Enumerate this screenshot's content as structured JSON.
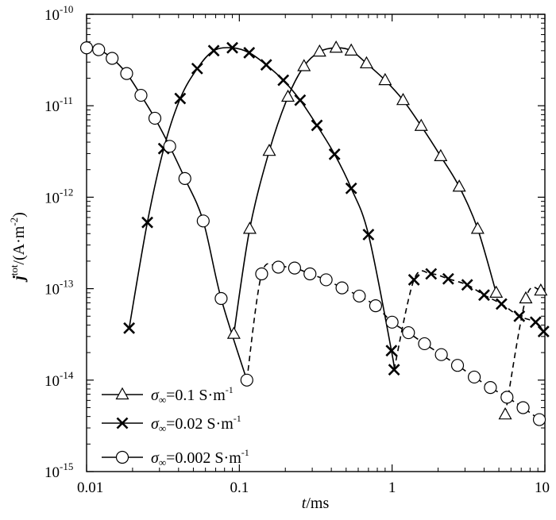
{
  "chart_data": {
    "type": "line",
    "xlabel": {
      "italic": "t",
      "rest": "/ms"
    },
    "ylabel": {
      "main": "j",
      "sup": "tot",
      "unit": "/(A·m",
      "unit_sup": "-2",
      "close": ")"
    },
    "x_scale": "log",
    "y_scale": "log",
    "xlim": [
      0.01,
      10
    ],
    "ylim": [
      1e-15,
      1e-10
    ],
    "x_ticks": [
      {
        "value": 0.01,
        "label": "0.01"
      },
      {
        "value": 0.1,
        "label": "0.1"
      },
      {
        "value": 1,
        "label": "1"
      },
      {
        "value": 10,
        "label": "10"
      }
    ],
    "y_ticks": [
      {
        "value": 1e-10,
        "base": "10",
        "exp": "-10"
      },
      {
        "value": 1e-11,
        "base": "10",
        "exp": "-11"
      },
      {
        "value": 1e-12,
        "base": "10",
        "exp": "-12"
      },
      {
        "value": 1e-13,
        "base": "10",
        "exp": "-13"
      },
      {
        "value": 1e-14,
        "base": "10",
        "exp": "-14"
      },
      {
        "value": 1e-15,
        "base": "10",
        "exp": "-15"
      }
    ],
    "legend_position": "bottom-left",
    "series": [
      {
        "name": "σ∞=0.1 S·m-1",
        "label_parts": {
          "sym": "σ",
          "sub": "∞",
          "text": "=0.1 S·m",
          "sup": "-1"
        },
        "marker": "triangle",
        "points": [
          [
            0.092,
            3.2e-14
          ],
          [
            0.117,
            4.5e-13
          ],
          [
            0.157,
            3.2e-12
          ],
          [
            0.208,
            1.25e-11
          ],
          [
            0.265,
            2.7e-11
          ],
          [
            0.335,
            3.9e-11
          ],
          [
            0.43,
            4.3e-11
          ],
          [
            0.54,
            4e-11
          ],
          [
            0.68,
            2.9e-11
          ],
          [
            0.9,
            1.9e-11
          ],
          [
            1.18,
            1.15e-11
          ],
          [
            1.55,
            6e-12
          ],
          [
            2.08,
            2.8e-12
          ],
          [
            2.75,
            1.3e-12
          ],
          [
            3.63,
            4.5e-13
          ],
          [
            4.8,
            9e-14
          ],
          [
            5.5,
            4.2e-15
          ],
          [
            7.5,
            7.8e-14
          ],
          [
            9.4,
            9.5e-14
          ]
        ],
        "solid_segments": [
          [
            0.092,
            5.3
          ]
        ],
        "dashed_segments": [
          [
            5.5,
            10
          ]
        ]
      },
      {
        "name": "σ∞=0.02 S·m-1",
        "label_parts": {
          "sym": "σ",
          "sub": "∞",
          "text": "=0.02 S·m",
          "sup": "-1"
        },
        "marker": "x",
        "points": [
          [
            0.019,
            3.7e-14
          ],
          [
            0.025,
            5.3e-13
          ],
          [
            0.032,
            3.4e-12
          ],
          [
            0.041,
            1.2e-11
          ],
          [
            0.053,
            2.55e-11
          ],
          [
            0.068,
            4e-11
          ],
          [
            0.09,
            4.3e-11
          ],
          [
            0.116,
            3.8e-11
          ],
          [
            0.15,
            2.8e-11
          ],
          [
            0.194,
            1.9e-11
          ],
          [
            0.25,
            1.15e-11
          ],
          [
            0.322,
            6.1e-12
          ],
          [
            0.42,
            2.95e-12
          ],
          [
            0.54,
            1.25e-12
          ],
          [
            0.7,
            3.9e-13
          ],
          [
            0.99,
            2.1e-14
          ],
          [
            1.03,
            1.3e-14
          ],
          [
            1.39,
            1.25e-13
          ],
          [
            1.8,
            1.45e-13
          ],
          [
            2.33,
            1.28e-13
          ],
          [
            3.1,
            1.1e-13
          ],
          [
            4.0,
            8.5e-14
          ],
          [
            5.2,
            6.8e-14
          ],
          [
            6.8,
            5e-14
          ],
          [
            8.7,
            4.3e-14
          ],
          [
            9.8,
            3.4e-14
          ]
        ],
        "solid_segments": [
          [
            0.019,
            1.03
          ]
        ],
        "dashed_segments": [
          [
            1.03,
            10
          ]
        ]
      },
      {
        "name": "σ∞=0.002 S·m-1",
        "label_parts": {
          "sym": "σ",
          "sub": "∞",
          "text": "=0.002 S·m",
          "sup": "-1"
        },
        "marker": "circle",
        "points": [
          [
            0.01,
            4.3e-11
          ],
          [
            0.012,
            4.1e-11
          ],
          [
            0.0147,
            3.3e-11
          ],
          [
            0.0183,
            2.25e-11
          ],
          [
            0.0227,
            1.3e-11
          ],
          [
            0.028,
            7.3e-12
          ],
          [
            0.035,
            3.6e-12
          ],
          [
            0.044,
            1.6e-12
          ],
          [
            0.058,
            5.5e-13
          ],
          [
            0.076,
            7.8e-14
          ],
          [
            0.112,
            1e-14
          ],
          [
            0.14,
            1.45e-13
          ],
          [
            0.18,
            1.72e-13
          ],
          [
            0.23,
            1.68e-13
          ],
          [
            0.29,
            1.45e-13
          ],
          [
            0.37,
            1.25e-13
          ],
          [
            0.47,
            1.02e-13
          ],
          [
            0.61,
            8.3e-14
          ],
          [
            0.78,
            6.5e-14
          ],
          [
            1.0,
            4.3e-14
          ],
          [
            1.28,
            3.3e-14
          ],
          [
            1.63,
            2.5e-14
          ],
          [
            2.1,
            1.9e-14
          ],
          [
            2.68,
            1.45e-14
          ],
          [
            3.45,
            1.08e-14
          ],
          [
            4.4,
            8.3e-15
          ],
          [
            5.65,
            6.5e-15
          ],
          [
            7.2,
            5e-15
          ],
          [
            9.2,
            3.7e-15
          ]
        ],
        "solid_segments": [
          [
            0.01,
            0.112
          ]
        ],
        "dashed_segments": [
          [
            0.112,
            10
          ]
        ]
      }
    ]
  }
}
